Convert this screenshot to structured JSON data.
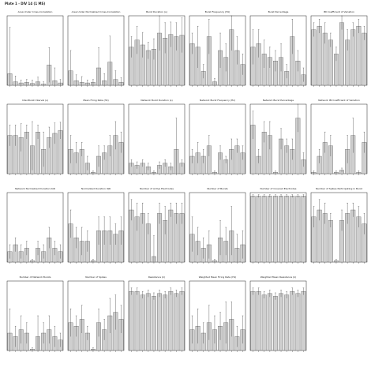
{
  "figure_title": "Plate 1 - DIV 14 (1 MS)",
  "style": {
    "bar_fill": "#cfcfcf",
    "bar_stroke": "#555555",
    "axis_color": "#222222",
    "error_color": "#333333"
  },
  "chart_data": [
    {
      "type": "bar",
      "title": "Area Under Cross-Correlation",
      "values": [
        0.2,
        0.06,
        0.04,
        0.05,
        0.03,
        0.06,
        0.02,
        0.35,
        0.08,
        0.04
      ],
      "errors": [
        0.8,
        0.1,
        0.05,
        0.05,
        0.06,
        0.08,
        0.04,
        0.3,
        0.22,
        0.06
      ],
      "ylim": [
        0,
        1.2
      ]
    },
    {
      "type": "bar",
      "title": "Area Under Normalized Cross-Correlation",
      "values": [
        0.25,
        0.08,
        0.05,
        0.04,
        0.05,
        0.3,
        0.08,
        0.4,
        0.1,
        0.05
      ],
      "errors": [
        0.35,
        0.1,
        0.1,
        0.05,
        0.05,
        0.35,
        0.12,
        0.45,
        0.15,
        0.08
      ],
      "ylim": [
        0,
        1.2
      ]
    },
    {
      "type": "bar",
      "title": "Burst Duration (s)",
      "values": [
        0.55,
        0.65,
        0.58,
        0.5,
        0.52,
        0.75,
        0.68,
        0.73,
        0.7,
        0.72
      ],
      "errors": [
        0.15,
        0.2,
        0.18,
        0.12,
        0.15,
        0.25,
        0.22,
        0.18,
        0.2,
        0.25
      ],
      "ylim": [
        0,
        1.0
      ]
    },
    {
      "type": "bar",
      "title": "Burst Frequency (Hz)",
      "values": [
        0.6,
        0.55,
        0.2,
        0.7,
        0.05,
        0.5,
        0.4,
        0.8,
        0.5,
        0.3
      ],
      "errors": [
        0.15,
        0.3,
        0.1,
        0.25,
        0.05,
        0.25,
        0.2,
        0.3,
        0.2,
        0.15
      ],
      "ylim": [
        0,
        1.0
      ]
    },
    {
      "type": "bar",
      "title": "Burst Percentage",
      "values": [
        0.55,
        0.6,
        0.45,
        0.4,
        0.35,
        0.4,
        0.2,
        0.7,
        0.35,
        0.15
      ],
      "errors": [
        0.25,
        0.2,
        0.2,
        0.15,
        0.15,
        0.2,
        0.1,
        0.25,
        0.15,
        0.1
      ],
      "ylim": [
        0,
        1.0
      ]
    },
    {
      "type": "bar",
      "title": "IBI Coefficient of Variation",
      "values": [
        0.8,
        0.85,
        0.75,
        0.65,
        0.45,
        0.9,
        0.65,
        0.8,
        0.85,
        0.75
      ],
      "errors": [
        0.1,
        0.1,
        0.15,
        0.1,
        0.1,
        0.1,
        0.15,
        0.1,
        0.1,
        0.1
      ],
      "ylim": [
        0,
        1.0
      ]
    },
    {
      "type": "bar",
      "title": "Inter-Burst Interval (s)",
      "values": [
        0.55,
        0.55,
        0.52,
        0.6,
        0.4,
        0.6,
        0.35,
        0.52,
        0.58,
        0.62
      ],
      "errors": [
        0.15,
        0.15,
        0.2,
        0.1,
        0.35,
        0.1,
        0.25,
        0.15,
        0.15,
        0.12
      ],
      "ylim": [
        0,
        1.0
      ]
    },
    {
      "type": "bar",
      "title": "Mean Firing Rate (Hz)",
      "values": [
        0.35,
        0.3,
        0.35,
        0.15,
        0.02,
        0.25,
        0.3,
        0.4,
        0.55,
        0.45
      ],
      "errors": [
        0.2,
        0.15,
        0.1,
        0.1,
        0.02,
        0.15,
        0.1,
        0.15,
        0.2,
        0.15
      ],
      "ylim": [
        0,
        1.0
      ]
    },
    {
      "type": "bar",
      "title": "Network Burst Duration (s)",
      "values": [
        0.15,
        0.12,
        0.15,
        0.1,
        0.02,
        0.12,
        0.15,
        0.1,
        0.35,
        0.15
      ],
      "errors": [
        0.05,
        0.05,
        0.05,
        0.05,
        0.02,
        0.05,
        0.05,
        0.05,
        0.45,
        0.05
      ],
      "ylim": [
        0,
        1.0
      ]
    },
    {
      "type": "bar",
      "title": "Network Burst Frequency (Hz)",
      "values": [
        0.25,
        0.3,
        0.25,
        0.4,
        0.02,
        0.3,
        0.2,
        0.35,
        0.4,
        0.3
      ],
      "errors": [
        0.1,
        0.15,
        0.1,
        0.15,
        0.02,
        0.1,
        0.05,
        0.15,
        0.1,
        0.1
      ],
      "ylim": [
        0,
        1.0
      ]
    },
    {
      "type": "bar",
      "title": "Network Burst Percentage",
      "values": [
        0.7,
        0.25,
        0.6,
        0.55,
        0.02,
        0.5,
        0.4,
        0.35,
        0.8,
        0.2
      ],
      "errors": [
        0.2,
        0.1,
        0.15,
        0.2,
        0.02,
        0.15,
        0.1,
        0.15,
        0.2,
        0.1
      ],
      "ylim": [
        0,
        1.0
      ]
    },
    {
      "type": "bar",
      "title": "Network IBI Coefficient of Variation",
      "values": [
        0.02,
        0.25,
        0.45,
        0.4,
        0.02,
        0.05,
        0.35,
        0.55,
        0.02,
        0.45
      ],
      "errors": [
        0.02,
        0.1,
        0.15,
        0.15,
        0.02,
        0.03,
        0.2,
        0.25,
        0.02,
        0.15
      ],
      "ylim": [
        0,
        1.0
      ]
    },
    {
      "type": "bar",
      "title": "Network Normalized Duration IQR",
      "values": [
        0.15,
        0.25,
        0.15,
        0.2,
        0.02,
        0.2,
        0.15,
        0.35,
        0.2,
        0.15
      ],
      "errors": [
        0.1,
        0.1,
        0.1,
        0.1,
        0.02,
        0.1,
        0.1,
        0.15,
        0.1,
        0.1
      ],
      "ylim": [
        0,
        1.0
      ]
    },
    {
      "type": "bar",
      "title": "Normalized Duration IQR",
      "values": [
        0.55,
        0.35,
        0.3,
        0.3,
        0.02,
        0.45,
        0.45,
        0.45,
        0.4,
        0.45
      ],
      "errors": [
        0.2,
        0.15,
        0.2,
        0.15,
        0.02,
        0.2,
        0.2,
        0.2,
        0.15,
        0.2
      ],
      "ylim": [
        0,
        1.0
      ]
    },
    {
      "type": "bar",
      "title": "Number of Active Electrodes",
      "values": [
        0.75,
        0.65,
        0.7,
        0.55,
        0.08,
        0.7,
        0.6,
        0.75,
        0.7,
        0.7
      ],
      "errors": [
        0.15,
        0.2,
        0.15,
        0.15,
        0.3,
        0.15,
        0.2,
        0.1,
        0.15,
        0.15
      ],
      "ylim": [
        0,
        1.0
      ]
    },
    {
      "type": "bar",
      "title": "Number of Bursts",
      "values": [
        0.4,
        0.3,
        0.2,
        0.25,
        0.02,
        0.35,
        0.3,
        0.45,
        0.2,
        0.25
      ],
      "errors": [
        0.25,
        0.2,
        0.15,
        0.2,
        0.02,
        0.25,
        0.2,
        0.35,
        0.2,
        0.2
      ],
      "ylim": [
        0,
        1.0
      ]
    },
    {
      "type": "bar",
      "title": "Number of Covered Electrodes",
      "values": [
        0.95,
        0.95,
        0.95,
        0.95,
        0.95,
        0.95,
        0.95,
        0.95,
        0.95,
        0.95
      ],
      "errors": [
        0.02,
        0.02,
        0.02,
        0.02,
        0.02,
        0.02,
        0.02,
        0.02,
        0.02,
        0.02
      ],
      "ylim": [
        0,
        1.0
      ]
    },
    {
      "type": "bar",
      "title": "Number of Spikes Participating in Burst",
      "values": [
        0.65,
        0.75,
        0.7,
        0.6,
        0.02,
        0.6,
        0.7,
        0.75,
        0.65,
        0.55
      ],
      "errors": [
        0.15,
        0.15,
        0.15,
        0.1,
        0.02,
        0.15,
        0.15,
        0.1,
        0.15,
        0.15
      ],
      "ylim": [
        0,
        1.0
      ]
    },
    {
      "type": "bar",
      "title": "Number of Network Bursts",
      "values": [
        0.25,
        0.2,
        0.3,
        0.25,
        0.02,
        0.2,
        0.25,
        0.3,
        0.2,
        0.15
      ],
      "errors": [
        0.35,
        0.15,
        0.2,
        0.15,
        0.02,
        0.3,
        0.15,
        0.2,
        0.15,
        0.1
      ],
      "ylim": [
        0,
        1.0
      ]
    },
    {
      "type": "bar",
      "title": "Number of Spikes",
      "values": [
        0.4,
        0.35,
        0.45,
        0.25,
        0.02,
        0.4,
        0.3,
        0.5,
        0.55,
        0.45
      ],
      "errors": [
        0.2,
        0.15,
        0.2,
        0.1,
        0.02,
        0.2,
        0.15,
        0.25,
        0.25,
        0.2
      ],
      "ylim": [
        0,
        1.0
      ]
    },
    {
      "type": "bar",
      "title": "Resistance (k)",
      "values": [
        0.85,
        0.85,
        0.8,
        0.82,
        0.78,
        0.82,
        0.8,
        0.85,
        0.82,
        0.85
      ],
      "errors": [
        0.05,
        0.05,
        0.05,
        0.05,
        0.05,
        0.05,
        0.05,
        0.05,
        0.05,
        0.05
      ],
      "ylim": [
        0,
        1.0
      ]
    },
    {
      "type": "bar",
      "title": "Weighted Mean Firing Rate (Hz)",
      "values": [
        0.3,
        0.35,
        0.25,
        0.4,
        0.3,
        0.35,
        0.4,
        0.45,
        0.2,
        0.3
      ],
      "errors": [
        0.2,
        0.25,
        0.15,
        0.25,
        0.2,
        0.2,
        0.3,
        0.25,
        0.15,
        0.2
      ],
      "ylim": [
        0,
        1.0
      ]
    },
    {
      "type": "bar",
      "title": "Weighted Mean Resistance (k)",
      "values": [
        0.85,
        0.85,
        0.8,
        0.82,
        0.78,
        0.82,
        0.8,
        0.85,
        0.82,
        0.85
      ],
      "errors": [
        0.05,
        0.05,
        0.05,
        0.05,
        0.05,
        0.05,
        0.05,
        0.05,
        0.05,
        0.05
      ],
      "ylim": [
        0,
        1.0
      ]
    }
  ]
}
